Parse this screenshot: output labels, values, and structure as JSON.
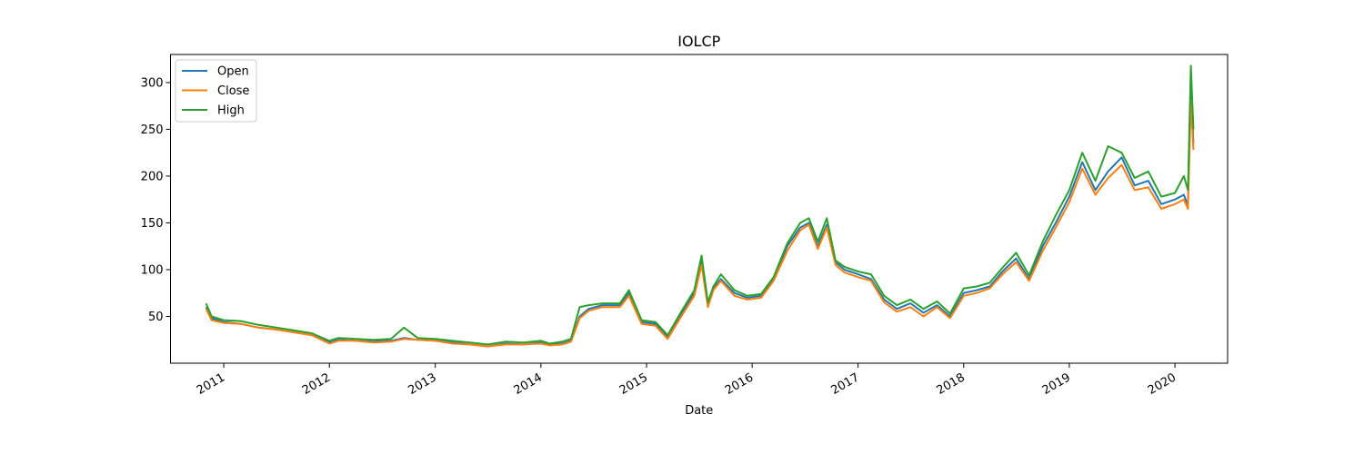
{
  "chart_data": {
    "type": "line",
    "title": "IOLCP",
    "xlabel": "Date",
    "ylabel": "",
    "xlim": [
      "2010-07-01",
      "2020-07-01"
    ],
    "ylim": [
      0,
      330
    ],
    "x_ticks": [
      {
        "date": "2011-01-01",
        "label": "2011"
      },
      {
        "date": "2012-01-01",
        "label": "2012"
      },
      {
        "date": "2013-01-01",
        "label": "2013"
      },
      {
        "date": "2014-01-01",
        "label": "2014"
      },
      {
        "date": "2015-01-01",
        "label": "2015"
      },
      {
        "date": "2016-01-01",
        "label": "2016"
      },
      {
        "date": "2017-01-01",
        "label": "2017"
      },
      {
        "date": "2018-01-01",
        "label": "2018"
      },
      {
        "date": "2019-01-01",
        "label": "2019"
      },
      {
        "date": "2020-01-01",
        "label": "2020"
      }
    ],
    "y_ticks": [
      50,
      100,
      150,
      200,
      250,
      300
    ],
    "grid": false,
    "legend_position": "top-left",
    "x": [
      "2010-11-01",
      "2010-11-20",
      "2011-01-01",
      "2011-03-01",
      "2011-05-01",
      "2011-07-01",
      "2011-09-01",
      "2011-11-01",
      "2012-01-01",
      "2012-02-01",
      "2012-04-01",
      "2012-06-01",
      "2012-08-01",
      "2012-09-15",
      "2012-11-01",
      "2013-01-01",
      "2013-03-01",
      "2013-05-01",
      "2013-07-01",
      "2013-09-01",
      "2013-11-01",
      "2014-01-01",
      "2014-02-01",
      "2014-03-15",
      "2014-04-15",
      "2014-05-15",
      "2014-06-15",
      "2014-08-01",
      "2014-10-01",
      "2014-11-01",
      "2014-12-15",
      "2015-02-01",
      "2015-03-15",
      "2015-05-01",
      "2015-06-15",
      "2015-07-10",
      "2015-08-01",
      "2015-08-20",
      "2015-09-15",
      "2015-11-01",
      "2015-12-15",
      "2016-02-01",
      "2016-03-15",
      "2016-05-01",
      "2016-06-15",
      "2016-07-15",
      "2016-08-15",
      "2016-09-15",
      "2016-10-15",
      "2016-11-15",
      "2017-01-01",
      "2017-02-15",
      "2017-04-01",
      "2017-05-15",
      "2017-07-01",
      "2017-08-15",
      "2017-10-01",
      "2017-11-15",
      "2018-01-01",
      "2018-02-15",
      "2018-04-01",
      "2018-05-15",
      "2018-07-01",
      "2018-08-15",
      "2018-10-01",
      "2018-11-15",
      "2019-01-01",
      "2019-02-15",
      "2019-04-01",
      "2019-05-15",
      "2019-07-01",
      "2019-08-15",
      "2019-10-01",
      "2019-11-15",
      "2020-01-01",
      "2020-02-01",
      "2020-02-15",
      "2020-02-25",
      "2020-03-05"
    ],
    "series": [
      {
        "name": "Open",
        "color": "#1f77b4",
        "values": [
          60,
          48,
          44,
          42,
          38,
          36,
          33,
          30,
          22,
          25,
          24,
          23,
          24,
          27,
          25,
          24,
          22,
          20,
          18,
          21,
          20,
          22,
          20,
          21,
          24,
          50,
          58,
          62,
          62,
          75,
          44,
          42,
          28,
          52,
          75,
          110,
          62,
          80,
          90,
          75,
          70,
          72,
          90,
          125,
          145,
          150,
          125,
          148,
          108,
          100,
          95,
          90,
          68,
          58,
          64,
          54,
          62,
          50,
          75,
          78,
          82,
          98,
          112,
          90,
          125,
          150,
          178,
          215,
          185,
          205,
          220,
          190,
          195,
          170,
          175,
          180,
          168,
          305,
          235
        ]
      },
      {
        "name": "Close",
        "color": "#ff7f0e",
        "values": [
          58,
          46,
          43,
          42,
          38,
          36,
          33,
          30,
          21,
          24,
          24,
          22,
          23,
          26,
          25,
          24,
          21,
          20,
          18,
          20,
          20,
          21,
          19,
          20,
          23,
          48,
          56,
          60,
          60,
          72,
          42,
          40,
          26,
          50,
          72,
          105,
          60,
          78,
          88,
          72,
          68,
          70,
          88,
          120,
          142,
          148,
          122,
          145,
          105,
          97,
          92,
          88,
          65,
          55,
          60,
          50,
          60,
          48,
          72,
          75,
          80,
          95,
          108,
          88,
          120,
          145,
          172,
          208,
          180,
          198,
          212,
          185,
          188,
          165,
          170,
          175,
          165,
          280,
          228
        ]
      },
      {
        "name": "High",
        "color": "#2ca02c",
        "values": [
          64,
          50,
          46,
          45,
          41,
          38,
          35,
          32,
          24,
          27,
          26,
          25,
          26,
          38,
          27,
          26,
          24,
          22,
          20,
          23,
          22,
          24,
          21,
          23,
          26,
          60,
          62,
          64,
          64,
          78,
          46,
          44,
          30,
          55,
          78,
          115,
          65,
          82,
          95,
          78,
          72,
          74,
          92,
          128,
          150,
          155,
          130,
          155,
          110,
          103,
          98,
          95,
          72,
          62,
          68,
          58,
          66,
          53,
          80,
          82,
          86,
          102,
          118,
          94,
          130,
          158,
          185,
          225,
          195,
          232,
          225,
          198,
          205,
          178,
          182,
          200,
          185,
          318,
          250
        ]
      }
    ]
  }
}
